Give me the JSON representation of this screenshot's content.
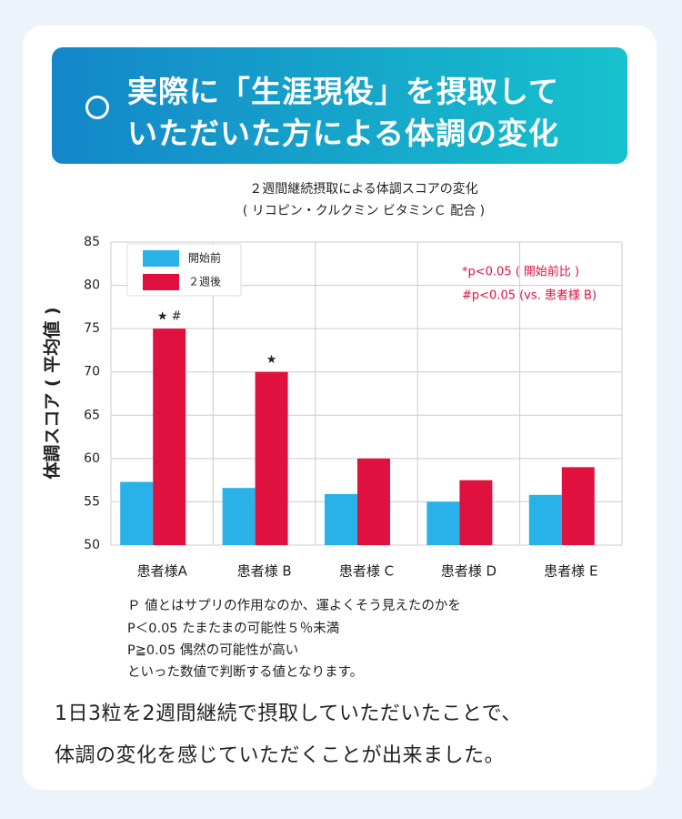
{
  "header": {
    "title_lines": [
      "実際に「生涯現役」を摂取して",
      "いただいた方による体調の変化"
    ]
  },
  "chart_data": {
    "type": "bar",
    "title": "２週間継続摂取による体調スコアの変化",
    "subtitle": "( リコピン・クルクミン ビタミンＣ 配合 )",
    "ylabel": "体調スコア ( 平均値 )",
    "categories": [
      "患者様A",
      "患者様 B",
      "患者様 C",
      "患者様 D",
      "患者様 E"
    ],
    "series": [
      {
        "name": "開始前",
        "color": "#29b2e8",
        "values": [
          57.3,
          56.6,
          55.9,
          55.0,
          55.8
        ]
      },
      {
        "name": "２週後",
        "color": "#e0113f",
        "values": [
          75,
          70,
          60,
          57.5,
          59
        ],
        "annotations": [
          "★ #",
          "★",
          null,
          null,
          null
        ]
      }
    ],
    "ylim": [
      50,
      85
    ],
    "yticks": [
      50,
      55,
      60,
      65,
      70,
      75,
      80,
      85
    ],
    "grid": true,
    "legend": "top-left",
    "notes": [
      "*p<0.05 ( 開始前比 )",
      "#p<0.05 (vs. 患者様 B)"
    ],
    "notes_color": "#e0113f"
  },
  "footnotes": [
    "Ｐ 値とはサプリの作用なのか、運よくそう見えたのかを",
    "P＜0.05 たまたまの可能性５％未満",
    "P≧0.05 偶然の可能性が高い",
    "といった数値で判断する値となります。"
  ],
  "summary": [
    "1日3粒を2週間継続で摂取していただいたことで、",
    "体調の変化を感じていただくことが出来ました。"
  ]
}
